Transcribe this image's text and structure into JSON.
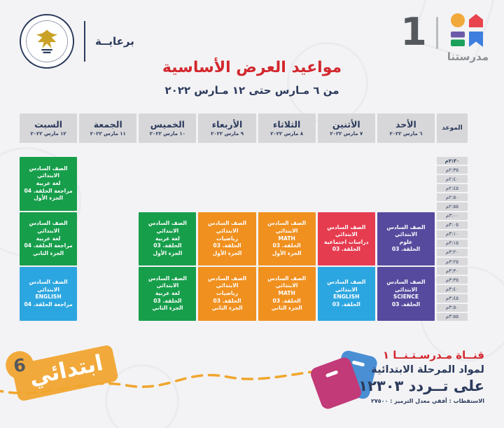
{
  "header": {
    "sponsor_label": "برعايــة",
    "brand": {
      "name": "مدرستنا",
      "number": "1"
    },
    "title": "مواعيد العرض الأساسية",
    "subtitle": "من ٦ مـارس حتى ١٢ مـارس ٢٠٢٢"
  },
  "schedule": {
    "time_header": "الموعد",
    "days": [
      {
        "name": "الأحد",
        "date": "٦ مارس ٢٠٢٢"
      },
      {
        "name": "الأثنين",
        "date": "٧ مارس ٢٠٢٢"
      },
      {
        "name": "الثلاثاء",
        "date": "٨ مارس ٢٠٢٢"
      },
      {
        "name": "الأربعاء",
        "date": "٩ مارس ٢٠٢٢"
      },
      {
        "name": "الخميس",
        "date": "١٠ مارس ٢٠٢٢"
      },
      {
        "name": "الجمعة",
        "date": "١١ مارس ٢٠٢٢"
      },
      {
        "name": "السبت",
        "date": "١٢ مارس ٢٠٢٢"
      }
    ],
    "times": [
      "٢:٣٠م",
      "٢:٣٥م",
      "٢:٤٠م",
      "٢:٤٥م",
      "٢:٥٠م",
      "٢:٥٥م",
      "٣:٠٠م",
      "٣:٠٥م",
      "٣:١٠م",
      "٣:١٥م",
      "٣:٢٠م",
      "٣:٢٥م",
      "٣:٣٠م",
      "٣:٣٥م",
      "٣:٤٠م",
      "٣:٤٥م",
      "٣:٥٠م",
      "٣:٥٥م"
    ],
    "blocks": [
      {
        "day": 0,
        "row": 7,
        "span": 6,
        "color": "purple",
        "lines": [
          "الصف السادس الابتدائي",
          "علوم",
          "الحلقة. 03"
        ]
      },
      {
        "day": 0,
        "row": 13,
        "span": 6,
        "color": "purple",
        "lines": [
          "الصف السادس الابتدائي",
          "SCIENCE",
          "الحلقة. 03"
        ]
      },
      {
        "day": 1,
        "row": 7,
        "span": 6,
        "color": "crimson",
        "lines": [
          "الصف السادس الابتدائي",
          "دراسات اجتماعية",
          "الحلقة. 03"
        ]
      },
      {
        "day": 1,
        "row": 13,
        "span": 6,
        "color": "blue",
        "lines": [
          "الصف السادس الابتدائي",
          "ENGLISH",
          "الحلقة. 03"
        ]
      },
      {
        "day": 2,
        "row": 7,
        "span": 6,
        "color": "orange",
        "lines": [
          "الصف السادس الابتدائي",
          "MATH",
          "الحلقة. 03",
          "الجزء الأول"
        ]
      },
      {
        "day": 2,
        "row": 13,
        "span": 6,
        "color": "orange",
        "lines": [
          "الصف السادس الابتدائي",
          "MATH",
          "الحلقة. 03",
          "الجزء الثاني"
        ]
      },
      {
        "day": 3,
        "row": 7,
        "span": 6,
        "color": "orange",
        "lines": [
          "الصف السادس الابتدائي",
          "رياضيات",
          "الحلقة. 03",
          "الجزء الأول"
        ]
      },
      {
        "day": 3,
        "row": 13,
        "span": 6,
        "color": "orange",
        "lines": [
          "الصف السادس الابتدائي",
          "رياضيات",
          "الحلقة. 03",
          "الجزء الثاني"
        ]
      },
      {
        "day": 4,
        "row": 7,
        "span": 6,
        "color": "green",
        "lines": [
          "الصف السادس الابتدائي",
          "لغة عربية",
          "الحلقة. 03",
          "الجزء الأول"
        ]
      },
      {
        "day": 4,
        "row": 13,
        "span": 6,
        "color": "green",
        "lines": [
          "الصف السادس الابتدائي",
          "لغة عربية",
          "الحلقة. 03",
          "الجزء الثاني"
        ]
      },
      {
        "day": 6,
        "row": 1,
        "span": 6,
        "color": "green",
        "lines": [
          "الصف السادس الابتدائي",
          "لغة عربية",
          "مراجعة الحلقة. 04",
          "الجزء الأول"
        ]
      },
      {
        "day": 6,
        "row": 7,
        "span": 6,
        "color": "green",
        "lines": [
          "الصف السادس الابتدائي",
          "لغة عربية",
          "مراجعة الحلقة. 04",
          "الجزء الثاني"
        ]
      },
      {
        "day": 6,
        "row": 13,
        "span": 6,
        "color": "blue",
        "lines": [
          "الصف السادس الابتدائي",
          "ENGLISH",
          "مراجعة الحلقة. 04"
        ]
      }
    ]
  },
  "footer": {
    "stage_badge": {
      "label": "ابتدائي",
      "number": "6"
    },
    "channel_line1": "قنــاة مـدرسـتـنــا ١",
    "channel_line2": "لمواد المرحلة الابتدائية",
    "channel_line3": "على تــردد ١٢٣٠٣",
    "channel_line4": "الاستقطاب : أفقي   معدل الترميز : ٢٧٥٠٠"
  },
  "colors": {
    "navy": "#2b3a5c",
    "title_red": "#d2282e",
    "purple": "#564a9e",
    "crimson": "#e63c50",
    "blue": "#2ca6e0",
    "orange": "#f0901f",
    "green": "#179e4b",
    "header_gray": "#d7d7d9",
    "badge_orange": "#f2a93b",
    "envelope_pink": "#c23a78",
    "envelope_blue": "#4a8fd4",
    "dashed_line_orange": "#f0a62e"
  }
}
